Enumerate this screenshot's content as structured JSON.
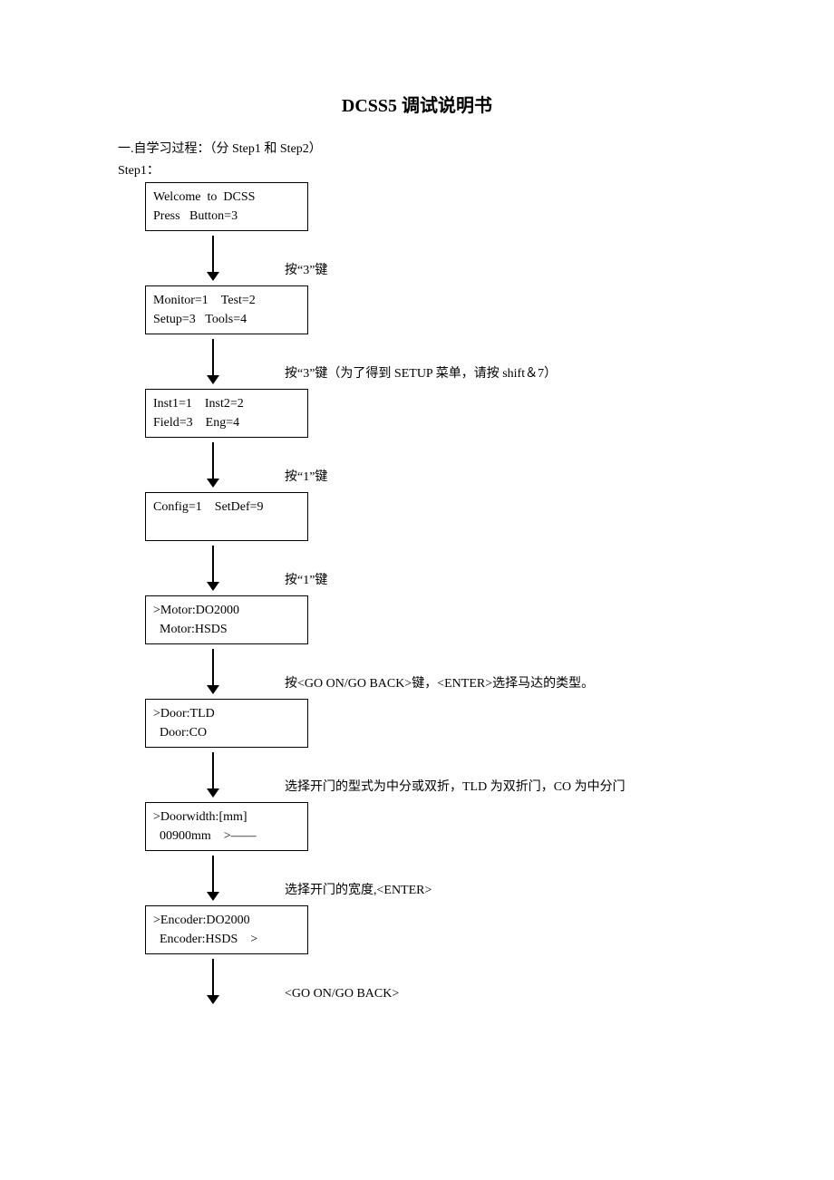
{
  "title": "DCSS5 调试说明书",
  "intro": "一.自学习过程：（分 Step1 和 Step2）",
  "step_label": "Step1：",
  "arrow": {
    "color": "#000000",
    "stroke_width": 2,
    "head_width": 14,
    "head_height": 10
  },
  "nodes": [
    {
      "line1": "Welcome  to  DCSS",
      "line2": "Press   Button=3",
      "caption": "按“3”键"
    },
    {
      "line1": "Monitor=1    Test=2",
      "line2": "Setup=3   Tools=4",
      "caption": "按“3”键（为了得到 SETUP 菜单，请按 shift＆7）"
    },
    {
      "line1": "Inst1=1    Inst2=2",
      "line2": "Field=3    Eng=4",
      "caption": "按“1”键"
    },
    {
      "line1": "Config=1    SetDef=9",
      "line2": " ",
      "caption": "按“1”键"
    },
    {
      "line1": ">Motor:DO2000",
      "line2": "  Motor:HSDS",
      "caption": "按<GO ON/GO BACK>键，<ENTER>选择马达的类型。"
    },
    {
      "line1": ">Door:TLD",
      "line2": "  Door:CO",
      "caption": "选择开门的型式为中分或双折，TLD 为双折门，CO 为中分门"
    },
    {
      "line1": ">Doorwidth:[mm]",
      "line2": "  00900mm    >——",
      "caption": "选择开门的宽度,<ENTER>"
    },
    {
      "line1": ">Encoder:DO2000",
      "line2": "  Encoder:HSDS    >",
      "caption": "<GO ON/GO BACK>"
    }
  ]
}
